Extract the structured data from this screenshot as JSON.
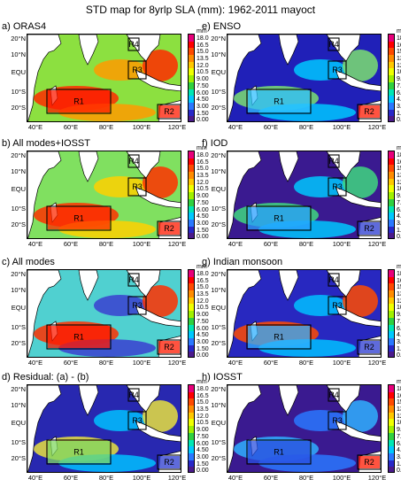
{
  "figure_title": "STD map for 8yrlp SLA (mm): 1962-2011 mayoct",
  "lat_labels": [
    "20°N",
    "10°N",
    "EQU",
    "10°S",
    "20°S"
  ],
  "lon_labels": [
    "40°E",
    "60°E",
    "80°E",
    "100°E",
    "120°E"
  ],
  "colorbar": {
    "unit": "mm",
    "labels": [
      "18.0",
      "16.5",
      "15.0",
      "13.5",
      "12.0",
      "10.5",
      "9.00",
      "7.50",
      "6.00",
      "4.50",
      "3.00",
      "1.50",
      "0.00"
    ],
    "colors": [
      "#e8007a",
      "#ff0000",
      "#ff4a00",
      "#ff8c00",
      "#ffc800",
      "#f0ff00",
      "#a0f000",
      "#30d040",
      "#00e6b4",
      "#00c8ff",
      "#2a78ff",
      "#2828c8",
      "#4a1a8c"
    ]
  },
  "panels": [
    {
      "id": "a",
      "title": "a) ORAS4",
      "base": "#8ce040",
      "hot": "#ff2a00",
      "r1_fill": "#ff1a00",
      "r2_fill": "#ff1a00",
      "accent": "#ff9a00",
      "regions": [
        "R1",
        "R2",
        "R3",
        "R4"
      ]
    },
    {
      "id": "e",
      "title": "e) ENSO",
      "base": "#2020b8",
      "hot": "#7ce070",
      "r1_fill": "#30c0ff",
      "r2_fill": "#ff1a00",
      "accent": "#00c8ff",
      "regions": [
        "R1",
        "R2",
        "R3",
        "R4"
      ]
    },
    {
      "id": "b",
      "title": "b) All modes+IOSST",
      "base": "#80e060",
      "hot": "#ff3000",
      "r1_fill": "#ff2a00",
      "r2_fill": "#ff1a00",
      "accent": "#ffd000",
      "regions": [
        "R1",
        "R2",
        "R3",
        "R4"
      ]
    },
    {
      "id": "f",
      "title": "f) IOD",
      "base": "#3a1a90",
      "hot": "#40d880",
      "r1_fill": "#2aa0ff",
      "r2_fill": "#2a3ad0",
      "accent": "#00c8ff",
      "regions": [
        "R1",
        "R2",
        "R3",
        "R4"
      ]
    },
    {
      "id": "c",
      "title": "c) All modes",
      "base": "#50d0d0",
      "hot": "#ff3000",
      "r1_fill": "#ff1a00",
      "r2_fill": "#ff1a00",
      "accent": "#3a40d0",
      "regions": [
        "R1",
        "R2",
        "R3",
        "R4"
      ]
    },
    {
      "id": "g",
      "title": "g) Indian monsoon",
      "base": "#2828c0",
      "hot": "#ff4a00",
      "r1_fill": "#30b0ff",
      "r2_fill": "#2a3ad0",
      "accent": "#00c0ff",
      "regions": [
        "R1",
        "R2",
        "R3",
        "R4"
      ]
    },
    {
      "id": "d",
      "title": "d) Residual: (a) - (b)",
      "base": "#2828b0",
      "hot": "#e8e040",
      "r1_fill": "#80d860",
      "r2_fill": "#2a3ad0",
      "accent": "#00c0ff",
      "regions": [
        "R1",
        "R2",
        "R3",
        "R4"
      ]
    },
    {
      "id": "h",
      "title": "h) IOSST",
      "base": "#3a1a90",
      "hot": "#30b0ff",
      "r1_fill": "#2a50e0",
      "r2_fill": "#ff1a00",
      "accent": "#2a78ff",
      "regions": [
        "R1",
        "R2",
        "R3",
        "R4"
      ]
    }
  ]
}
